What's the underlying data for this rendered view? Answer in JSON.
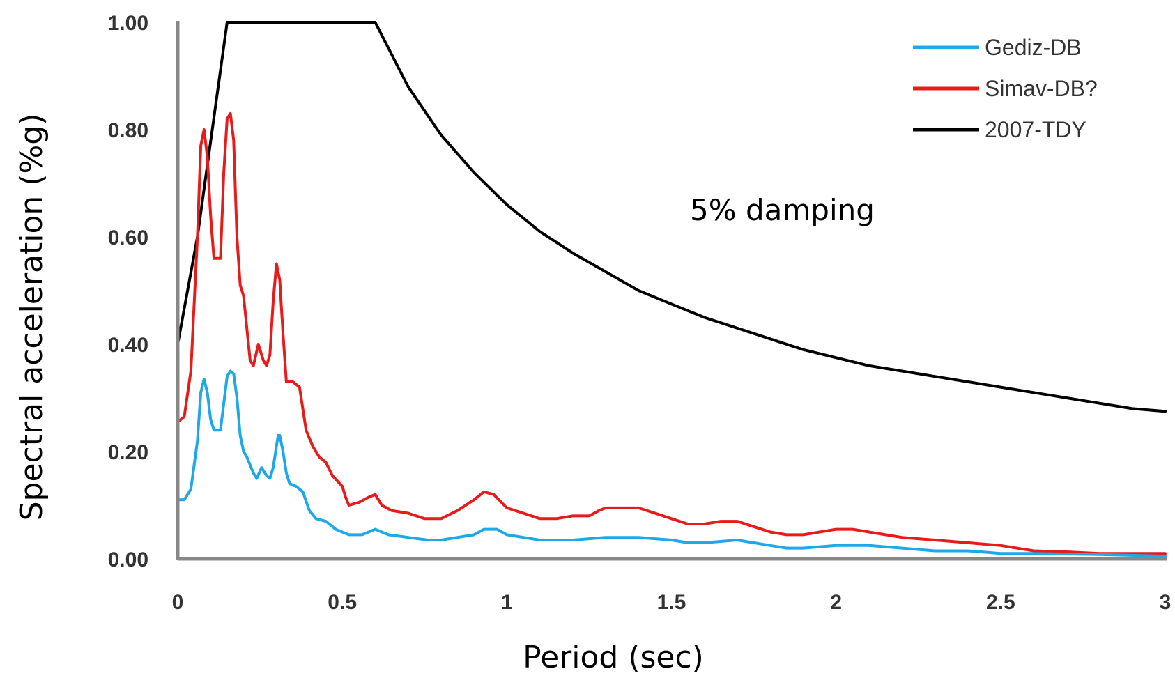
{
  "chart_data": {
    "type": "line",
    "title": "",
    "xlabel": "Period (sec)",
    "ylabel": "Spectral acceleration (%g)",
    "xlim": [
      0,
      3
    ],
    "ylim": [
      0,
      1
    ],
    "x_ticks": [
      "0",
      "0.5",
      "1",
      "1.5",
      "2",
      "2.5",
      "3"
    ],
    "y_ticks": [
      "0.00",
      "0.20",
      "0.40",
      "0.60",
      "0.80",
      "1.00"
    ],
    "grid": false,
    "legend_position": "top-right",
    "annotation": "5% damping",
    "series": [
      {
        "name": "Gediz-DB",
        "color": "#1EA8E8",
        "points": [
          [
            0,
            0.11
          ],
          [
            0.02,
            0.11
          ],
          [
            0.04,
            0.13
          ],
          [
            0.06,
            0.22
          ],
          [
            0.07,
            0.31
          ],
          [
            0.08,
            0.335
          ],
          [
            0.09,
            0.31
          ],
          [
            0.1,
            0.26
          ],
          [
            0.11,
            0.24
          ],
          [
            0.13,
            0.24
          ],
          [
            0.14,
            0.29
          ],
          [
            0.15,
            0.34
          ],
          [
            0.16,
            0.35
          ],
          [
            0.17,
            0.345
          ],
          [
            0.18,
            0.3
          ],
          [
            0.19,
            0.23
          ],
          [
            0.2,
            0.2
          ],
          [
            0.21,
            0.19
          ],
          [
            0.23,
            0.16
          ],
          [
            0.24,
            0.15
          ],
          [
            0.255,
            0.17
          ],
          [
            0.27,
            0.155
          ],
          [
            0.28,
            0.15
          ],
          [
            0.29,
            0.17
          ],
          [
            0.3,
            0.21
          ],
          [
            0.305,
            0.23
          ],
          [
            0.31,
            0.23
          ],
          [
            0.32,
            0.2
          ],
          [
            0.33,
            0.16
          ],
          [
            0.34,
            0.14
          ],
          [
            0.36,
            0.135
          ],
          [
            0.38,
            0.125
          ],
          [
            0.4,
            0.09
          ],
          [
            0.42,
            0.075
          ],
          [
            0.45,
            0.07
          ],
          [
            0.48,
            0.055
          ],
          [
            0.52,
            0.045
          ],
          [
            0.56,
            0.045
          ],
          [
            0.6,
            0.055
          ],
          [
            0.64,
            0.045
          ],
          [
            0.7,
            0.04
          ],
          [
            0.76,
            0.035
          ],
          [
            0.8,
            0.035
          ],
          [
            0.85,
            0.04
          ],
          [
            0.9,
            0.045
          ],
          [
            0.93,
            0.055
          ],
          [
            0.97,
            0.055
          ],
          [
            1.0,
            0.045
          ],
          [
            1.05,
            0.04
          ],
          [
            1.1,
            0.035
          ],
          [
            1.2,
            0.035
          ],
          [
            1.3,
            0.04
          ],
          [
            1.4,
            0.04
          ],
          [
            1.5,
            0.035
          ],
          [
            1.55,
            0.03
          ],
          [
            1.6,
            0.03
          ],
          [
            1.7,
            0.035
          ],
          [
            1.8,
            0.025
          ],
          [
            1.85,
            0.02
          ],
          [
            1.9,
            0.02
          ],
          [
            2.0,
            0.025
          ],
          [
            2.1,
            0.025
          ],
          [
            2.2,
            0.02
          ],
          [
            2.3,
            0.015
          ],
          [
            2.4,
            0.015
          ],
          [
            2.5,
            0.01
          ],
          [
            2.6,
            0.01
          ],
          [
            2.8,
            0.008
          ],
          [
            3.0,
            0.005
          ]
        ]
      },
      {
        "name": "Simav-DB?",
        "color": "#E81B1B",
        "points": [
          [
            0,
            0.255
          ],
          [
            0.02,
            0.265
          ],
          [
            0.04,
            0.35
          ],
          [
            0.06,
            0.6
          ],
          [
            0.07,
            0.77
          ],
          [
            0.08,
            0.8
          ],
          [
            0.09,
            0.75
          ],
          [
            0.1,
            0.64
          ],
          [
            0.11,
            0.56
          ],
          [
            0.13,
            0.56
          ],
          [
            0.14,
            0.72
          ],
          [
            0.15,
            0.82
          ],
          [
            0.16,
            0.83
          ],
          [
            0.17,
            0.78
          ],
          [
            0.18,
            0.6
          ],
          [
            0.19,
            0.51
          ],
          [
            0.2,
            0.49
          ],
          [
            0.21,
            0.43
          ],
          [
            0.22,
            0.37
          ],
          [
            0.23,
            0.36
          ],
          [
            0.245,
            0.4
          ],
          [
            0.26,
            0.37
          ],
          [
            0.27,
            0.36
          ],
          [
            0.28,
            0.38
          ],
          [
            0.29,
            0.48
          ],
          [
            0.3,
            0.55
          ],
          [
            0.31,
            0.52
          ],
          [
            0.32,
            0.42
          ],
          [
            0.33,
            0.33
          ],
          [
            0.35,
            0.33
          ],
          [
            0.37,
            0.32
          ],
          [
            0.38,
            0.28
          ],
          [
            0.39,
            0.24
          ],
          [
            0.41,
            0.21
          ],
          [
            0.43,
            0.19
          ],
          [
            0.45,
            0.18
          ],
          [
            0.47,
            0.155
          ],
          [
            0.5,
            0.135
          ],
          [
            0.51,
            0.115
          ],
          [
            0.52,
            0.1
          ],
          [
            0.55,
            0.105
          ],
          [
            0.58,
            0.115
          ],
          [
            0.6,
            0.12
          ],
          [
            0.62,
            0.1
          ],
          [
            0.65,
            0.09
          ],
          [
            0.7,
            0.085
          ],
          [
            0.75,
            0.075
          ],
          [
            0.8,
            0.075
          ],
          [
            0.85,
            0.09
          ],
          [
            0.9,
            0.11
          ],
          [
            0.93,
            0.125
          ],
          [
            0.96,
            0.12
          ],
          [
            1.0,
            0.095
          ],
          [
            1.05,
            0.085
          ],
          [
            1.1,
            0.075
          ],
          [
            1.15,
            0.075
          ],
          [
            1.2,
            0.08
          ],
          [
            1.25,
            0.08
          ],
          [
            1.28,
            0.09
          ],
          [
            1.3,
            0.095
          ],
          [
            1.4,
            0.095
          ],
          [
            1.45,
            0.085
          ],
          [
            1.5,
            0.075
          ],
          [
            1.55,
            0.065
          ],
          [
            1.6,
            0.065
          ],
          [
            1.65,
            0.07
          ],
          [
            1.7,
            0.07
          ],
          [
            1.75,
            0.06
          ],
          [
            1.8,
            0.05
          ],
          [
            1.85,
            0.045
          ],
          [
            1.9,
            0.045
          ],
          [
            1.95,
            0.05
          ],
          [
            2.0,
            0.055
          ],
          [
            2.05,
            0.055
          ],
          [
            2.1,
            0.05
          ],
          [
            2.2,
            0.04
          ],
          [
            2.3,
            0.035
          ],
          [
            2.4,
            0.03
          ],
          [
            2.5,
            0.025
          ],
          [
            2.6,
            0.015
          ],
          [
            2.7,
            0.013
          ],
          [
            2.8,
            0.01
          ],
          [
            3.0,
            0.01
          ]
        ]
      },
      {
        "name": "2007-TDY",
        "color": "#000000",
        "points": [
          [
            0,
            0.4
          ],
          [
            0.06,
            0.6
          ],
          [
            0.15,
            1.0
          ],
          [
            0.6,
            1.0
          ],
          [
            0.7,
            0.88
          ],
          [
            0.8,
            0.79
          ],
          [
            0.9,
            0.72
          ],
          [
            1.0,
            0.66
          ],
          [
            1.1,
            0.61
          ],
          [
            1.2,
            0.57
          ],
          [
            1.3,
            0.535
          ],
          [
            1.4,
            0.5
          ],
          [
            1.5,
            0.475
          ],
          [
            1.6,
            0.45
          ],
          [
            1.7,
            0.43
          ],
          [
            1.8,
            0.41
          ],
          [
            1.9,
            0.39
          ],
          [
            2.0,
            0.375
          ],
          [
            2.1,
            0.36
          ],
          [
            2.2,
            0.35
          ],
          [
            2.3,
            0.34
          ],
          [
            2.4,
            0.33
          ],
          [
            2.5,
            0.32
          ],
          [
            2.6,
            0.31
          ],
          [
            2.7,
            0.3
          ],
          [
            2.8,
            0.29
          ],
          [
            2.9,
            0.28
          ],
          [
            3.0,
            0.275
          ]
        ]
      }
    ]
  }
}
